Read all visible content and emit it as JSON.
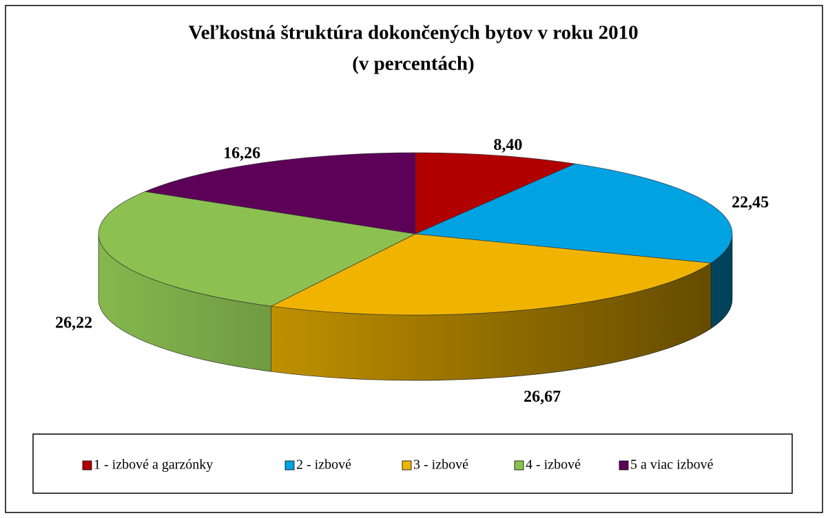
{
  "chart_data": {
    "type": "pie3d",
    "title": "Veľkostná štruktúra dokončených bytov v roku 2010",
    "subtitle": "(v percentách)",
    "categories": [
      "1 - izbové a garzónky",
      "2 - izbové",
      "3 - izbové",
      "4 - izbové",
      "5 a viac izbové"
    ],
    "values": [
      8.4,
      22.45,
      26.67,
      26.22,
      16.26
    ],
    "value_labels": [
      "8,40",
      "22,45",
      "26,67",
      "26,22",
      "16,26"
    ],
    "colors": [
      "#b00000",
      "#00a2e2",
      "#f0b400",
      "#8cc152",
      "#5c0058"
    ],
    "legend": "bottom"
  }
}
